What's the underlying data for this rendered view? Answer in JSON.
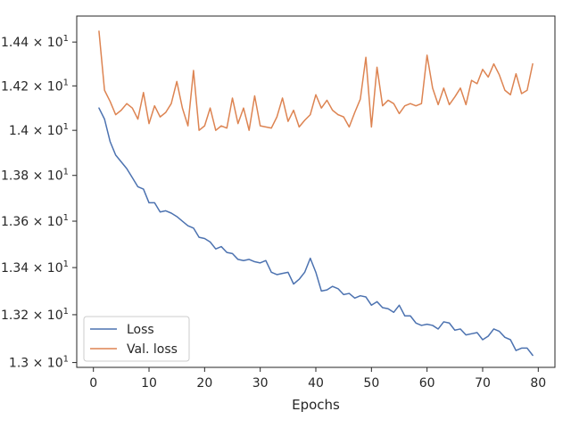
{
  "chart_data": {
    "type": "line",
    "xlabel": "Epochs",
    "ylabel": "",
    "title": "",
    "xlim": [
      -3,
      83
    ],
    "ylim": [
      12.98,
      14.52
    ],
    "y_scale": "log",
    "grid": false,
    "legend_position": "lower-left",
    "x_ticks": [
      {
        "value": 0,
        "label": "0"
      },
      {
        "value": 10,
        "label": "10"
      },
      {
        "value": 20,
        "label": "20"
      },
      {
        "value": 30,
        "label": "30"
      },
      {
        "value": 40,
        "label": "40"
      },
      {
        "value": 50,
        "label": "50"
      },
      {
        "value": 60,
        "label": "60"
      },
      {
        "value": 70,
        "label": "70"
      },
      {
        "value": 80,
        "label": "80"
      }
    ],
    "y_ticks": [
      {
        "value": 13.0,
        "mantissa": "1.3"
      },
      {
        "value": 13.2,
        "mantissa": "1.32"
      },
      {
        "value": 13.4,
        "mantissa": "1.34"
      },
      {
        "value": 13.6,
        "mantissa": "1.36"
      },
      {
        "value": 13.8,
        "mantissa": "1.38"
      },
      {
        "value": 14.0,
        "mantissa": "1.4"
      },
      {
        "value": 14.2,
        "mantissa": "1.42"
      },
      {
        "value": 14.4,
        "mantissa": "1.44"
      }
    ],
    "y_tick_suffix": "× 10",
    "y_tick_exponent": "1",
    "x": [
      1,
      2,
      3,
      4,
      5,
      6,
      7,
      8,
      9,
      10,
      11,
      12,
      13,
      14,
      15,
      16,
      17,
      18,
      19,
      20,
      21,
      22,
      23,
      24,
      25,
      26,
      27,
      28,
      29,
      30,
      31,
      32,
      33,
      34,
      35,
      36,
      37,
      38,
      39,
      40,
      41,
      42,
      43,
      44,
      45,
      46,
      47,
      48,
      49,
      50,
      51,
      52,
      53,
      54,
      55,
      56,
      57,
      58,
      59,
      60,
      61,
      62,
      63,
      64,
      65,
      66,
      67,
      68,
      69,
      70,
      71,
      72,
      73,
      74,
      75,
      76,
      77,
      78,
      79
    ],
    "series": [
      {
        "name": "Loss",
        "color": "#4c72b0",
        "values": [
          14.1,
          14.05,
          13.95,
          13.89,
          13.86,
          13.83,
          13.79,
          13.75,
          13.74,
          13.68,
          13.68,
          13.64,
          13.645,
          13.635,
          13.62,
          13.6,
          13.58,
          13.57,
          13.53,
          13.525,
          13.51,
          13.48,
          13.49,
          13.465,
          13.46,
          13.435,
          13.43,
          13.435,
          13.425,
          13.42,
          13.43,
          13.38,
          13.37,
          13.375,
          13.38,
          13.33,
          13.35,
          13.38,
          13.44,
          13.38,
          13.3,
          13.305,
          13.32,
          13.31,
          13.285,
          13.29,
          13.27,
          13.28,
          13.275,
          13.24,
          13.255,
          13.23,
          13.225,
          13.21,
          13.24,
          13.195,
          13.195,
          13.165,
          13.155,
          13.16,
          13.155,
          13.14,
          13.17,
          13.165,
          13.135,
          13.14,
          13.115,
          13.12,
          13.125,
          13.095,
          13.11,
          13.14,
          13.13,
          13.105,
          13.095,
          13.05,
          13.06,
          13.06,
          13.03
        ]
      },
      {
        "name": "Val. loss",
        "color": "#dd8452",
        "values": [
          14.45,
          14.18,
          14.13,
          14.07,
          14.09,
          14.12,
          14.1,
          14.05,
          14.17,
          14.03,
          14.11,
          14.06,
          14.08,
          14.12,
          14.22,
          14.1,
          14.02,
          14.27,
          14.0,
          14.02,
          14.1,
          14.0,
          14.02,
          14.01,
          14.145,
          14.03,
          14.1,
          14.0,
          14.155,
          14.02,
          14.015,
          14.01,
          14.06,
          14.145,
          14.04,
          14.09,
          14.015,
          14.045,
          14.07,
          14.16,
          14.1,
          14.135,
          14.09,
          14.07,
          14.06,
          14.015,
          14.08,
          14.14,
          14.33,
          14.015,
          14.285,
          14.11,
          14.135,
          14.12,
          14.075,
          14.11,
          14.12,
          14.11,
          14.12,
          14.34,
          14.19,
          14.115,
          14.19,
          14.115,
          14.15,
          14.19,
          14.115,
          14.225,
          14.21,
          14.275,
          14.24,
          14.3,
          14.25,
          14.18,
          14.16,
          14.255,
          14.165,
          14.18,
          14.3
        ]
      }
    ]
  }
}
